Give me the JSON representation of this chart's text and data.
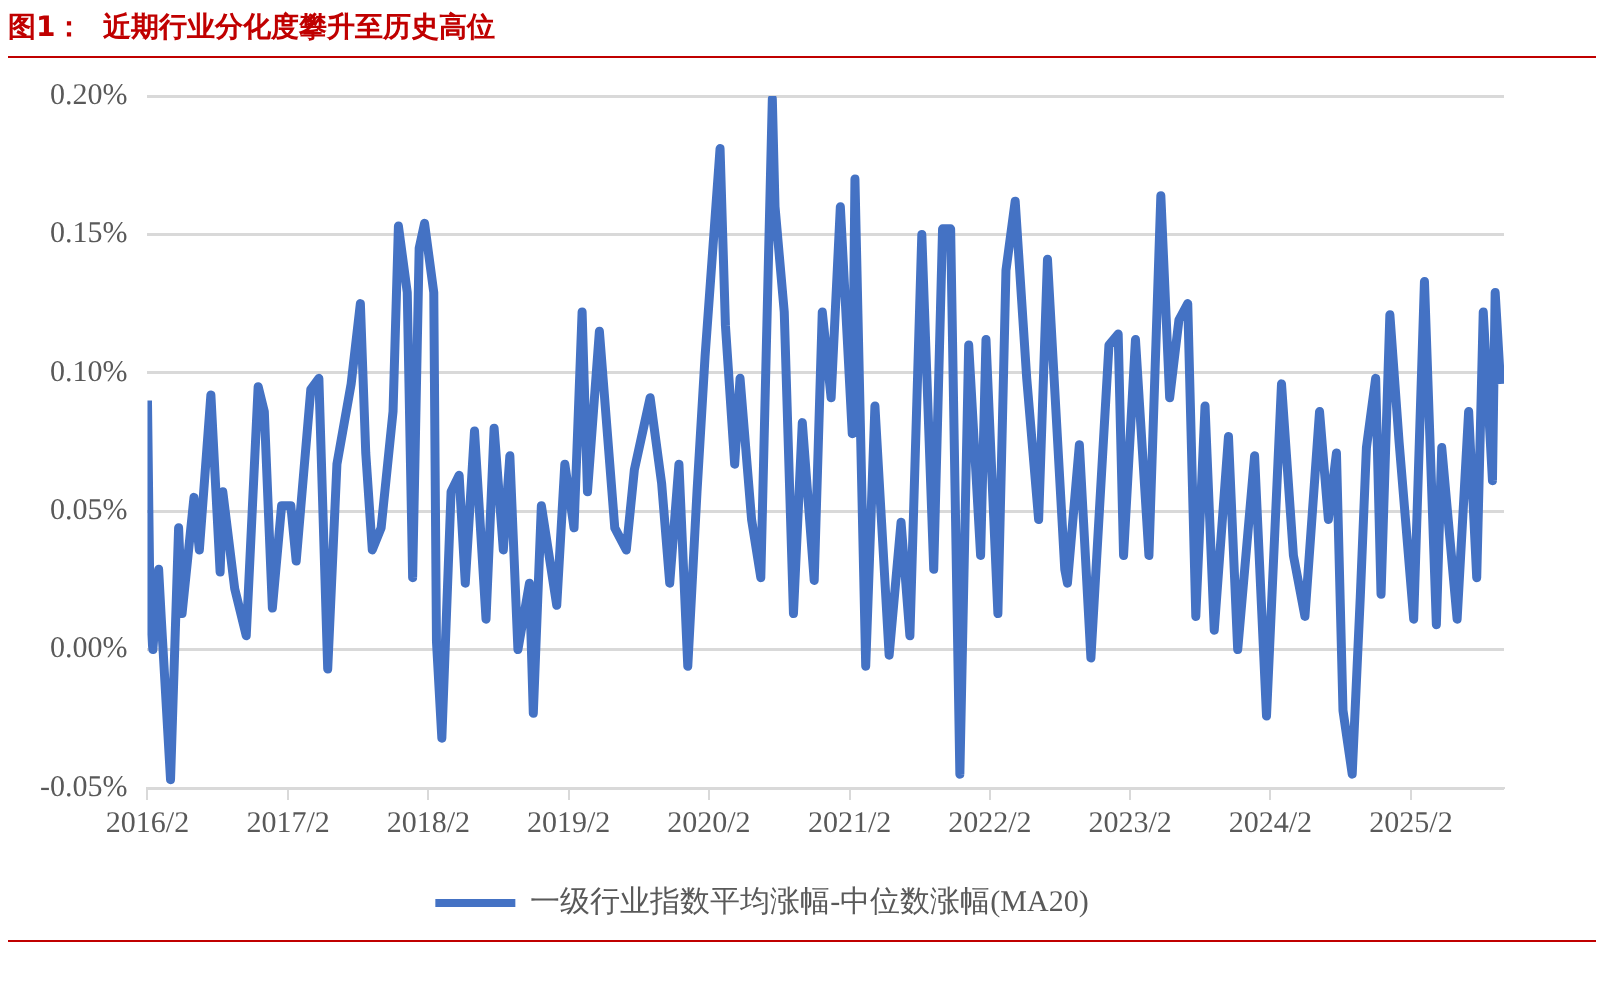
{
  "chart_data": {
    "type": "line",
    "title": "图1：  近期行业分化度攀升至历史高位",
    "xlim": [
      "2016-02-01",
      "2025-10-01"
    ],
    "xticks": [
      {
        "value": "2016-02-01",
        "label": "2016/2"
      },
      {
        "value": "2017-02-01",
        "label": "2017/2"
      },
      {
        "value": "2018-02-01",
        "label": "2018/2"
      },
      {
        "value": "2019-02-01",
        "label": "2019/2"
      },
      {
        "value": "2020-02-01",
        "label": "2020/2"
      },
      {
        "value": "2021-02-01",
        "label": "2021/2"
      },
      {
        "value": "2022-02-01",
        "label": "2022/2"
      },
      {
        "value": "2023-02-01",
        "label": "2023/2"
      },
      {
        "value": "2024-02-01",
        "label": "2024/2"
      },
      {
        "value": "2025-02-01",
        "label": "2025/2"
      }
    ],
    "ylim": [
      -0.05,
      0.2
    ],
    "yticks": [
      {
        "value": -0.05,
        "label": "-0.05%"
      },
      {
        "value": 0,
        "label": "0.00%"
      },
      {
        "value": 0.05,
        "label": "0.05%"
      },
      {
        "value": 0.1,
        "label": "0.10%"
      },
      {
        "value": 0.15,
        "label": "0.15%"
      },
      {
        "value": 0.2,
        "label": "0.20%"
      }
    ],
    "grid": "y",
    "legend": "bottom",
    "marker": "none",
    "line_style": "solid",
    "series": [
      {
        "name": "一级行业指数平均涨幅-中位数涨幅(MA20)",
        "color": "#4472c4",
        "x": [
          "2016-02-01",
          "2016-02-08",
          "2016-02-15",
          "2016-03-01",
          "2016-03-08",
          "2016-04-01",
          "2016-04-22",
          "2016-05-01",
          "2016-06-01",
          "2016-06-15",
          "2016-07-15",
          "2016-08-08",
          "2016-08-15",
          "2016-09-15",
          "2016-10-15",
          "2016-11-15",
          "2016-12-01",
          "2016-12-22",
          "2017-01-15",
          "2017-02-08",
          "2017-02-22",
          "2017-04-01",
          "2017-04-22",
          "2017-05-15",
          "2017-06-08",
          "2017-07-15",
          "2017-08-08",
          "2017-08-22",
          "2017-09-08",
          "2017-10-01",
          "2017-11-01",
          "2017-11-15",
          "2017-12-08",
          "2017-12-22",
          "2018-01-08",
          "2018-01-22",
          "2018-02-15",
          "2018-02-22",
          "2018-03-08",
          "2018-04-01",
          "2018-04-22",
          "2018-05-08",
          "2018-06-01",
          "2018-07-01",
          "2018-07-22",
          "2018-08-15",
          "2018-09-01",
          "2018-09-22",
          "2018-10-22",
          "2018-11-01",
          "2018-11-22",
          "2019-01-01",
          "2019-01-22",
          "2019-02-15",
          "2019-03-08",
          "2019-03-22",
          "2019-04-22",
          "2019-06-01",
          "2019-07-01",
          "2019-07-22",
          "2019-09-01",
          "2019-10-01",
          "2019-10-22",
          "2019-11-15",
          "2019-12-08",
          "2020-01-01",
          "2020-01-22",
          "2020-03-01",
          "2020-03-15",
          "2020-04-08",
          "2020-04-22",
          "2020-05-22",
          "2020-06-15",
          "2020-07-15",
          "2020-07-22",
          "2020-08-15",
          "2020-09-08",
          "2020-10-01",
          "2020-11-01",
          "2020-11-22",
          "2020-12-15",
          "2021-01-08",
          "2021-02-08",
          "2021-02-15",
          "2021-03-15",
          "2021-04-08",
          "2021-05-15",
          "2021-06-15",
          "2021-07-08",
          "2021-08-08",
          "2021-09-08",
          "2021-10-01",
          "2021-10-22",
          "2021-11-15",
          "2021-12-08",
          "2022-01-08",
          "2022-01-22",
          "2022-02-22",
          "2022-03-15",
          "2022-04-08",
          "2022-05-08",
          "2022-06-08",
          "2022-07-01",
          "2022-08-15",
          "2022-08-22",
          "2022-09-22",
          "2022-10-22",
          "2022-12-08",
          "2023-01-01",
          "2023-01-15",
          "2023-02-15",
          "2023-03-22",
          "2023-04-22",
          "2023-05-15",
          "2023-06-08",
          "2023-07-01",
          "2023-07-22",
          "2023-08-15",
          "2023-09-08",
          "2023-10-15",
          "2023-11-08",
          "2023-12-22",
          "2024-01-22",
          "2024-03-01",
          "2024-04-01",
          "2024-05-01",
          "2024-06-08",
          "2024-07-01",
          "2024-07-22",
          "2024-08-08",
          "2024-09-01",
          "2024-09-22",
          "2024-10-08",
          "2024-11-01",
          "2024-11-15",
          "2024-12-08",
          "2025-01-01",
          "2025-02-08",
          "2025-03-08",
          "2025-04-08",
          "2025-04-22",
          "2025-06-01",
          "2025-07-01",
          "2025-07-22",
          "2025-08-08",
          "2025-09-01",
          "2025-09-08",
          "2025-09-22"
        ],
        "values": [
          0.09,
          0.011,
          0.0,
          0.029,
          0.011,
          -0.047,
          0.044,
          0.013,
          0.055,
          0.036,
          0.092,
          0.028,
          0.057,
          0.022,
          0.005,
          0.095,
          0.086,
          0.015,
          0.052,
          0.052,
          0.032,
          0.094,
          0.098,
          -0.007,
          0.067,
          0.096,
          0.125,
          0.071,
          0.036,
          0.044,
          0.086,
          0.153,
          0.129,
          0.026,
          0.145,
          0.154,
          0.129,
          0.003,
          -0.032,
          0.057,
          0.063,
          0.024,
          0.079,
          0.011,
          0.08,
          0.036,
          0.07,
          0.0,
          0.024,
          -0.023,
          0.052,
          0.016,
          0.067,
          0.044,
          0.122,
          0.057,
          0.115,
          0.044,
          0.036,
          0.065,
          0.091,
          0.06,
          0.024,
          0.067,
          -0.006,
          0.057,
          0.106,
          0.181,
          0.117,
          0.067,
          0.098,
          0.047,
          0.026,
          0.199,
          0.16,
          0.122,
          0.013,
          0.082,
          0.025,
          0.122,
          0.091,
          0.16,
          0.078,
          0.17,
          -0.006,
          0.088,
          -0.002,
          0.046,
          0.005,
          0.15,
          0.029,
          0.152,
          0.152,
          -0.045,
          0.11,
          0.034,
          0.112,
          0.013,
          0.137,
          0.162,
          0.098,
          0.047,
          0.141,
          0.029,
          0.024,
          0.074,
          -0.003,
          0.11,
          0.114,
          0.034,
          0.112,
          0.034,
          0.164,
          0.091,
          0.119,
          0.125,
          0.012,
          0.088,
          0.007,
          0.077,
          0.0,
          0.07,
          -0.024,
          0.096,
          0.034,
          0.012,
          0.086,
          0.047,
          0.071,
          -0.022,
          -0.045,
          0.019,
          0.073,
          0.098,
          0.02,
          0.121,
          0.075,
          0.011,
          0.133,
          0.009,
          0.073,
          0.011,
          0.086,
          0.026,
          0.122,
          0.061,
          0.129,
          0.096
        ]
      }
    ]
  }
}
